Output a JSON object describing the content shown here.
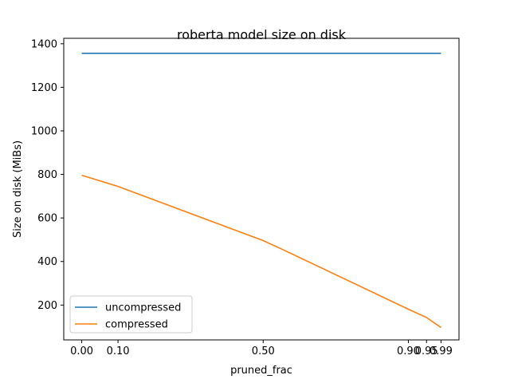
{
  "chart_data": {
    "type": "line",
    "title": "roberta model size on disk",
    "xlabel": "pruned_frac",
    "ylabel": "Size on disk (MiBs)",
    "x": [
      0.0,
      0.1,
      0.5,
      0.55,
      0.9,
      0.95,
      0.99
    ],
    "xticks": [
      0.0,
      0.1,
      0.5,
      0.9,
      0.95,
      0.99
    ],
    "xtick_labels": [
      "0.00",
      "0.10",
      "0.50",
      "0.90",
      "0.95",
      "0.99"
    ],
    "yticks": [
      200,
      400,
      600,
      800,
      1000,
      1200,
      1400
    ],
    "ylim": [
      40,
      1425
    ],
    "legend_position": "lower-left",
    "series": [
      {
        "name": "uncompressed",
        "color": "#1f77b4",
        "values": [
          1356,
          1356,
          1356,
          1356,
          1356,
          1356,
          1356
        ]
      },
      {
        "name": "compressed",
        "color": "#ff7f0e",
        "values": [
          796,
          745,
          496,
          458,
          181,
          143,
          97
        ]
      }
    ]
  }
}
